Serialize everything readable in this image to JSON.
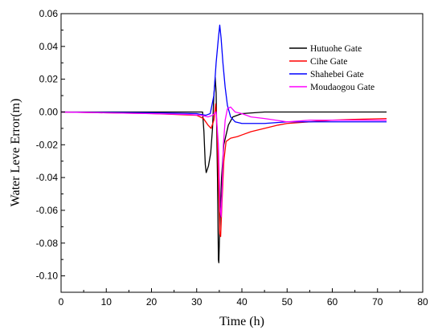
{
  "chart_data": {
    "type": "line",
    "xlabel": "Time (h)",
    "ylabel": "Water Leve Error(m)",
    "xlim": [
      0,
      80
    ],
    "ylim": [
      -0.11,
      0.06
    ],
    "xticks": [
      0,
      10,
      20,
      30,
      40,
      50,
      60,
      70,
      80
    ],
    "yticks": [
      0.06,
      0.04,
      0.02,
      0.0,
      -0.02,
      -0.04,
      -0.06,
      -0.08,
      -0.1
    ],
    "ytick_labels": [
      "0.06",
      "0.04",
      "0.02",
      "0.00",
      "-0.02",
      "-0.04",
      "-0.06",
      "-0.08",
      "-0.10"
    ],
    "grid": false,
    "legend_position": "top-right",
    "series": [
      {
        "name": "Hutuohe Gate",
        "color": "#000000",
        "points": [
          [
            0,
            0
          ],
          [
            10,
            0
          ],
          [
            20,
            0
          ],
          [
            25,
            0
          ],
          [
            28,
            0
          ],
          [
            30,
            0
          ],
          [
            31.3,
            0
          ],
          [
            31.6,
            -0.012
          ],
          [
            31.9,
            -0.032
          ],
          [
            32.1,
            -0.037
          ],
          [
            32.6,
            -0.033
          ],
          [
            33.1,
            -0.025
          ],
          [
            33.5,
            -0.01
          ],
          [
            33.8,
            0.01
          ],
          [
            34.1,
            0.021
          ],
          [
            34.3,
            0.012
          ],
          [
            34.6,
            -0.04
          ],
          [
            34.8,
            -0.09
          ],
          [
            34.9,
            -0.092
          ],
          [
            35.1,
            -0.07
          ],
          [
            35.5,
            -0.04
          ],
          [
            36,
            -0.02
          ],
          [
            37,
            -0.008
          ],
          [
            38,
            -0.003
          ],
          [
            40,
            -0.001
          ],
          [
            45,
            0
          ],
          [
            50,
            0
          ],
          [
            60,
            0
          ],
          [
            72,
            0
          ]
        ]
      },
      {
        "name": "Cihe Gate",
        "color": "#ff0000",
        "points": [
          [
            0,
            0
          ],
          [
            10,
            -0.0005
          ],
          [
            20,
            -0.001
          ],
          [
            25,
            -0.0015
          ],
          [
            30,
            -0.002
          ],
          [
            31.5,
            -0.004
          ],
          [
            32.5,
            -0.008
          ],
          [
            33.2,
            -0.01
          ],
          [
            33.8,
            -0.005
          ],
          [
            34.2,
            0.005
          ],
          [
            34.5,
            -0.01
          ],
          [
            34.9,
            -0.05
          ],
          [
            35.1,
            -0.074
          ],
          [
            35.3,
            -0.076
          ],
          [
            35.6,
            -0.055
          ],
          [
            36,
            -0.03
          ],
          [
            36.5,
            -0.018
          ],
          [
            37.5,
            -0.016
          ],
          [
            39,
            -0.015
          ],
          [
            40,
            -0.014
          ],
          [
            42,
            -0.012
          ],
          [
            45,
            -0.01
          ],
          [
            48,
            -0.008
          ],
          [
            50,
            -0.007
          ],
          [
            55,
            -0.006
          ],
          [
            60,
            -0.005
          ],
          [
            65,
            -0.0045
          ],
          [
            72,
            -0.004
          ]
        ]
      },
      {
        "name": "Shahebei Gate",
        "color": "#0000ff",
        "points": [
          [
            0,
            0
          ],
          [
            10,
            -0.0003
          ],
          [
            20,
            -0.0005
          ],
          [
            30,
            -0.001
          ],
          [
            32,
            -0.002
          ],
          [
            33,
            -0.001
          ],
          [
            33.8,
            0.01
          ],
          [
            34.3,
            0.03
          ],
          [
            34.8,
            0.045
          ],
          [
            35.1,
            0.053
          ],
          [
            35.4,
            0.045
          ],
          [
            35.8,
            0.03
          ],
          [
            36.3,
            0.015
          ],
          [
            36.8,
            0.004
          ],
          [
            37.5,
            -0.003
          ],
          [
            38.5,
            -0.006
          ],
          [
            40,
            -0.007
          ],
          [
            45,
            -0.007
          ],
          [
            50,
            -0.006
          ],
          [
            55,
            -0.006
          ],
          [
            60,
            -0.006
          ],
          [
            65,
            -0.006
          ],
          [
            72,
            -0.006
          ]
        ]
      },
      {
        "name": "Moudaogou Gate",
        "color": "#ff00ff",
        "points": [
          [
            0,
            0
          ],
          [
            10,
            -0.0005
          ],
          [
            20,
            -0.001
          ],
          [
            28,
            -0.0015
          ],
          [
            31,
            -0.002
          ],
          [
            32.5,
            -0.003
          ],
          [
            33.5,
            -0.002
          ],
          [
            34.3,
            0.0
          ],
          [
            34.8,
            -0.02
          ],
          [
            35.2,
            -0.06
          ],
          [
            35.4,
            -0.064
          ],
          [
            35.6,
            -0.05
          ],
          [
            35.9,
            -0.02
          ],
          [
            36.3,
            -0.005
          ],
          [
            36.8,
            0.002
          ],
          [
            37.5,
            0.003
          ],
          [
            38.5,
            0.0
          ],
          [
            40,
            -0.001
          ],
          [
            42,
            -0.003
          ],
          [
            45,
            -0.004
          ],
          [
            50,
            -0.006
          ],
          [
            55,
            -0.005
          ],
          [
            60,
            -0.005
          ],
          [
            65,
            -0.005
          ],
          [
            72,
            -0.005
          ]
        ]
      }
    ]
  }
}
